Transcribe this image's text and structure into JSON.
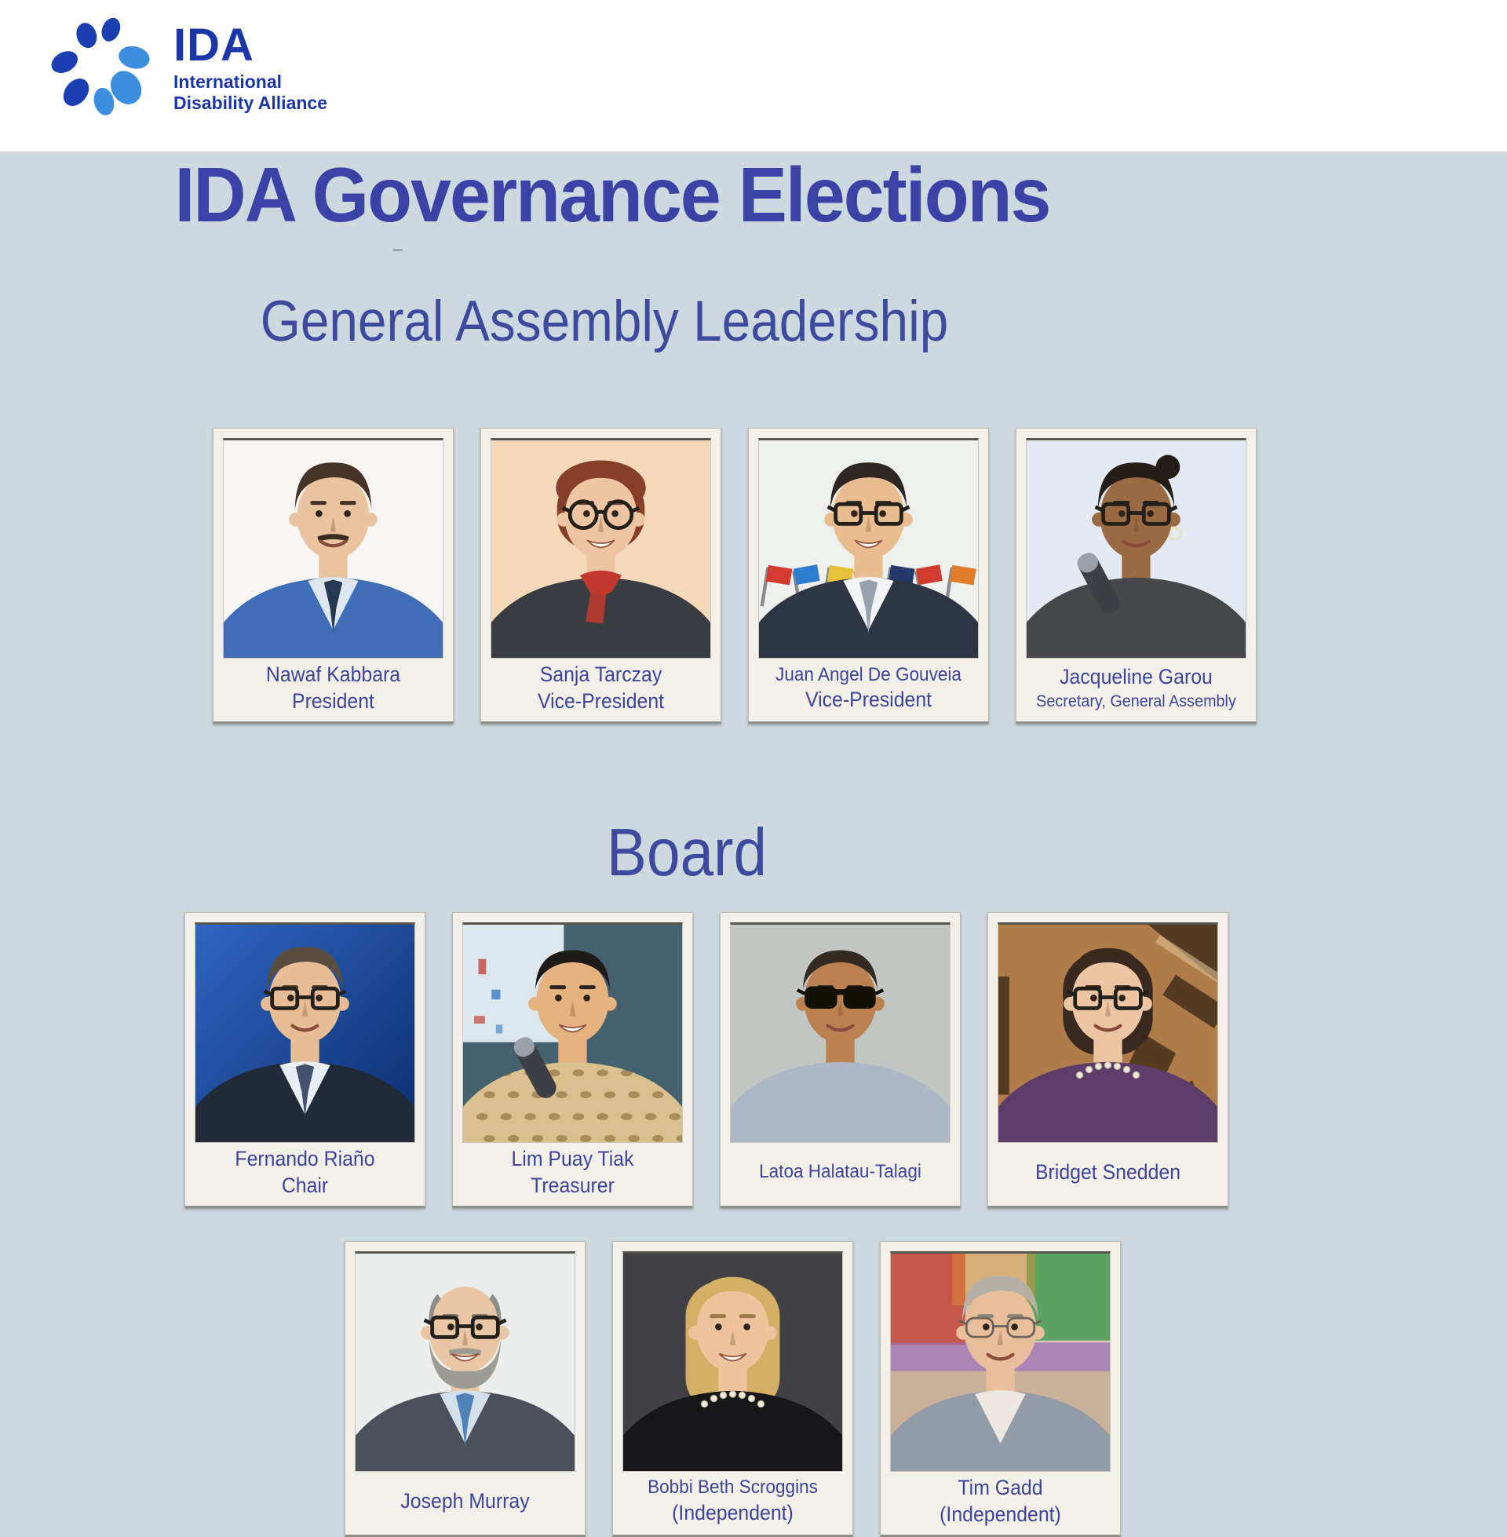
{
  "colors": {
    "page_bg": "#cdd9df",
    "header_bg": "#ffffff",
    "title_text": "#3a42a6",
    "heading_text": "#3d4a9e",
    "caption_text": "#3d4499",
    "card_bg": "#f2f0e9",
    "card_border": "#bdbbb2",
    "logo_dark_blue": "#1b3eb0",
    "logo_light_blue": "#3e8ee0",
    "logo_text_blue": "#1b36a8"
  },
  "logo": {
    "brand": "IDA",
    "line1": "International",
    "line2": "Disability Alliance"
  },
  "title": "IDA Governance Elections",
  "sections": [
    {
      "heading": "General Assembly Leadership",
      "rows": [
        [
          {
            "name": "Nawaf Kabbara",
            "role": "President",
            "avatar": {
              "skin": "#eac49e",
              "bg": "#f7f6f4",
              "hair": "#453327",
              "style": "side",
              "clothes": "#3f6db8",
              "shirt": "#dfe7ee",
              "tie": "#263852",
              "mustache": true,
              "brow": "#453327"
            }
          },
          {
            "name": "Sanja Tarczay",
            "role": "Vice-President",
            "avatar": {
              "skin": "#eec5a2",
              "bg": "#f3d9ba",
              "hair": "#86402a",
              "style": "bob-short",
              "clothes": "#393c41",
              "scarf": "#c2392e",
              "glasses": "round",
              "smile": "open",
              "brow": "#6a3a26"
            }
          },
          {
            "name": "Juan Angel De Gouveia",
            "role": "Vice-President",
            "avatar": {
              "skin": "#eabd90",
              "bg": "#eef0ed",
              "hair": "#2e2620",
              "style": "side",
              "clothes": "#2e3644",
              "shirt": "#f2f4f6",
              "tie": "#97a0ad",
              "glasses": "rect",
              "deco": "flags",
              "smile": "open",
              "brow": "#2e2620"
            }
          },
          {
            "name": "Jacqueline Garou",
            "role": "Secretary, General Assembly",
            "avatar": {
              "skin": "#9a6a42",
              "bg": "#e3eaf2",
              "hair": "#241d18",
              "style": "updo",
              "clothes": "#46474b",
              "glasses": "rect",
              "mic": true,
              "earring": true,
              "brow": "#1f1a15"
            }
          }
        ]
      ]
    },
    {
      "heading": "Board",
      "rows": [
        [
          {
            "name": "Fernando Riaño",
            "role": "Chair",
            "avatar": {
              "skin": "#e8bd96",
              "bgGrad": [
                "#2f66c0",
                "#0b2d6e"
              ],
              "hair": "#5a4c3e",
              "style": "side",
              "clothes": "#222a37",
              "shirt": "#e9eef3",
              "tie": "#43536e",
              "glasses": "rect",
              "brow": "#4a3c2e"
            }
          },
          {
            "name": "Lim Puay Tiak",
            "role": "Treasurer",
            "avatar": {
              "skin": "#e6b27f",
              "bg": "#45606f",
              "hair": "#1d1a17",
              "style": "buzz",
              "clothes": "#d9c08e",
              "pattern": true,
              "mic": true,
              "deco": "screen",
              "smile": "open",
              "brow": "#2a241e"
            }
          },
          {
            "name": "Latoa Halatau-Talagi",
            "role": "",
            "avatar": {
              "skin": "#bc8150",
              "bg": "#c2c6c2",
              "hair": "#332a22",
              "style": "buzz",
              "clothes": "#adb8c6",
              "glasses": "sun",
              "brow": "#2a241e"
            }
          },
          {
            "name": "Bridget Snedden",
            "role": "",
            "avatar": {
              "skin": "#ecc5a3",
              "bg": "#b07c49",
              "hair": "#39291f",
              "style": "bob",
              "clothes": "#5d3c69",
              "glasses": "rect",
              "pearls": true,
              "deco": "tapa",
              "brow": "#39291f"
            }
          }
        ],
        [
          {
            "name": "Joseph Murray",
            "role": "",
            "avatar": {
              "skin": "#e9c6a4",
              "bg": "#eceptone",
              "style": "bald",
              "bgfix": "#eceeed",
              "hair": "#8e8d88",
              "clothes": "#4b505a",
              "shirt": "#d3dfe9",
              "tie": "#4f83b8",
              "glasses": "rect",
              "beard": "#9c9b94",
              "smile": "open",
              "brow": "#7a766e"
            }
          },
          {
            "name": "Bobbi Beth Scroggins",
            "role": "(Independent)",
            "avatar": {
              "skin": "#eec49e",
              "bg": "#414144",
              "hair": "#d6af66",
              "style": "shoulder",
              "clothes": "#17171a",
              "pearls": true,
              "smile": "open",
              "brow": "#9a7a48"
            }
          },
          {
            "name": "Tim Gadd",
            "role": "(Independent)",
            "avatar": {
              "skin": "#e9bf9b",
              "bg": "#cfc5b8",
              "hair": "#b5b0a6",
              "style": "side",
              "clothes": "#939ca6",
              "shirt": "#ece8e1",
              "glasses": "thin",
              "deco": "blobs",
              "brow": "#8a857c"
            }
          }
        ]
      ]
    }
  ]
}
